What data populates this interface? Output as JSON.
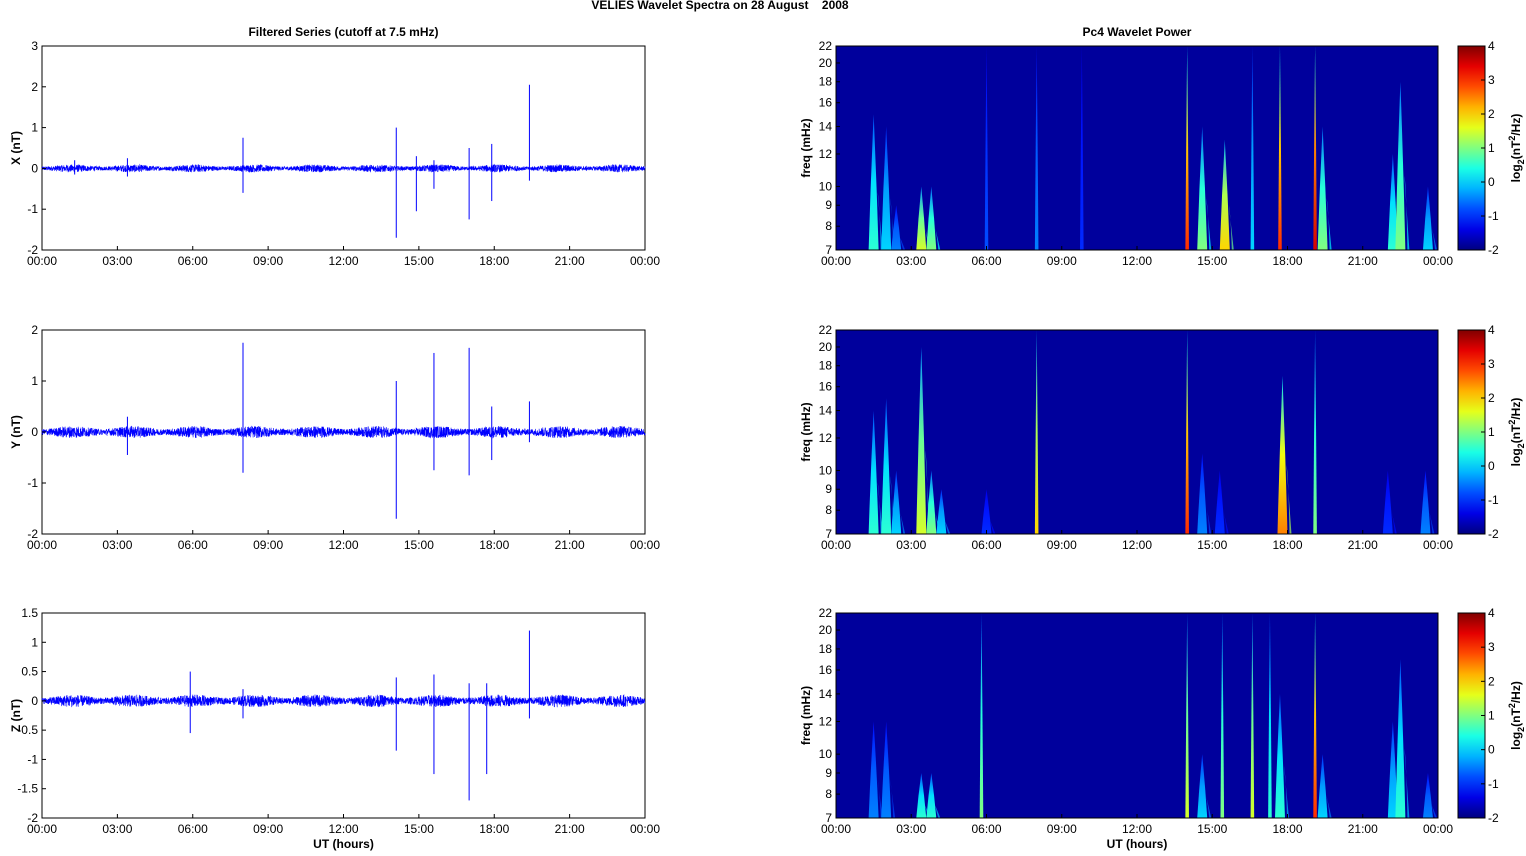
{
  "title": "VELIES Wavelet Spectra on 28 August    2008",
  "chart_data": [
    {
      "type": "line",
      "component": "X",
      "title": "Filtered Series (cutoff at 7.5 mHz)",
      "ylabel": "X (nT)",
      "xlabel": "",
      "ylim": [
        -2,
        3
      ],
      "yticks": [
        -2,
        -1,
        0,
        1,
        2,
        3
      ],
      "noise_amplitude": 0.08,
      "spikes": [
        {
          "t": 1.3,
          "up": 0.2,
          "down": -0.15
        },
        {
          "t": 3.4,
          "up": 0.25,
          "down": -0.2
        },
        {
          "t": 8.0,
          "up": 0.75,
          "down": -0.6
        },
        {
          "t": 14.1,
          "up": 1.0,
          "down": -1.7
        },
        {
          "t": 14.9,
          "up": 0.3,
          "down": -1.05
        },
        {
          "t": 15.6,
          "up": 0.2,
          "down": -0.5
        },
        {
          "t": 17.0,
          "up": 0.5,
          "down": -1.25
        },
        {
          "t": 17.9,
          "up": 0.6,
          "down": -0.8
        },
        {
          "t": 19.4,
          "up": 2.05,
          "down": -0.3
        }
      ]
    },
    {
      "type": "line",
      "component": "Y",
      "title": "",
      "ylabel": "Y (nT)",
      "xlabel": "",
      "ylim": [
        -2,
        2
      ],
      "yticks": [
        -2,
        -1,
        0,
        1,
        2
      ],
      "noise_amplitude": 0.1,
      "spikes": [
        {
          "t": 3.4,
          "up": 0.3,
          "down": -0.45
        },
        {
          "t": 8.0,
          "up": 1.75,
          "down": -0.8
        },
        {
          "t": 14.1,
          "up": 1.0,
          "down": -1.7
        },
        {
          "t": 15.6,
          "up": 1.55,
          "down": -0.75
        },
        {
          "t": 17.0,
          "up": 1.65,
          "down": -0.85
        },
        {
          "t": 17.9,
          "up": 0.5,
          "down": -0.55
        },
        {
          "t": 19.4,
          "up": 0.6,
          "down": -0.2
        }
      ]
    },
    {
      "type": "line",
      "component": "Z",
      "title": "",
      "ylabel": "Z (nT)",
      "xlabel": "UT (hours)",
      "ylim": [
        -2,
        1.5
      ],
      "yticks": [
        -2,
        -1.5,
        -1,
        -0.5,
        0,
        0.5,
        1,
        1.5
      ],
      "noise_amplitude": 0.09,
      "spikes": [
        {
          "t": 5.9,
          "up": 0.5,
          "down": -0.55
        },
        {
          "t": 8.0,
          "up": 0.2,
          "down": -0.3
        },
        {
          "t": 14.1,
          "up": 0.4,
          "down": -0.85
        },
        {
          "t": 15.6,
          "up": 0.45,
          "down": -1.25
        },
        {
          "t": 17.0,
          "up": 0.3,
          "down": -1.7
        },
        {
          "t": 17.7,
          "up": 0.3,
          "down": -1.25
        },
        {
          "t": 19.4,
          "up": 1.2,
          "down": -0.3
        }
      ]
    },
    {
      "type": "heatmap",
      "component": "X",
      "title": "Pc4 Wavelet Power",
      "ylabel": "freq (mHz)",
      "xlabel": "",
      "colorbar_label": "log2(nT2/Hz)",
      "clim": [
        -2,
        4
      ],
      "ylim": [
        7,
        22
      ],
      "bursts": [
        {
          "t": 1.5,
          "p": 0.5,
          "fmax": 15
        },
        {
          "t": 2.0,
          "p": 0,
          "fmax": 14
        },
        {
          "t": 2.4,
          "p": -0.5,
          "fmax": 9
        },
        {
          "t": 3.4,
          "p": 1.5,
          "fmax": 10
        },
        {
          "t": 3.8,
          "p": 1,
          "fmax": 10
        },
        {
          "t": 6.0,
          "p": -0.8,
          "fmax": 22
        },
        {
          "t": 8.0,
          "p": -0.5,
          "fmax": 22
        },
        {
          "t": 9.8,
          "p": -1,
          "fmax": 22
        },
        {
          "t": 14.0,
          "p": 3,
          "fmax": 22
        },
        {
          "t": 14.6,
          "p": 1,
          "fmax": 14
        },
        {
          "t": 15.5,
          "p": 2,
          "fmax": 13
        },
        {
          "t": 16.6,
          "p": 0,
          "fmax": 22
        },
        {
          "t": 17.7,
          "p": 3,
          "fmax": 22
        },
        {
          "t": 19.1,
          "p": 3.5,
          "fmax": 22
        },
        {
          "t": 19.4,
          "p": 1,
          "fmax": 14
        },
        {
          "t": 22.2,
          "p": 0.5,
          "fmax": 12
        },
        {
          "t": 22.5,
          "p": 1,
          "fmax": 18
        },
        {
          "t": 23.6,
          "p": 0,
          "fmax": 10
        }
      ]
    },
    {
      "type": "heatmap",
      "component": "Y",
      "title": "",
      "ylabel": "freq (mHz)",
      "xlabel": "",
      "colorbar_label": "log2(nT2/Hz)",
      "clim": [
        -2,
        4
      ],
      "ylim": [
        7,
        22
      ],
      "bursts": [
        {
          "t": 1.5,
          "p": 0.5,
          "fmax": 14
        },
        {
          "t": 2.0,
          "p": 0.5,
          "fmax": 15
        },
        {
          "t": 2.4,
          "p": 0,
          "fmax": 10
        },
        {
          "t": 3.4,
          "p": 1.5,
          "fmax": 20
        },
        {
          "t": 3.8,
          "p": 1,
          "fmax": 10
        },
        {
          "t": 4.2,
          "p": 0,
          "fmax": 9
        },
        {
          "t": 6.0,
          "p": -1,
          "fmax": 9
        },
        {
          "t": 8.0,
          "p": 2,
          "fmax": 22
        },
        {
          "t": 14.0,
          "p": 3,
          "fmax": 22
        },
        {
          "t": 14.6,
          "p": -0.5,
          "fmax": 11
        },
        {
          "t": 15.3,
          "p": -1,
          "fmax": 10
        },
        {
          "t": 17.8,
          "p": 2.5,
          "fmax": 17
        },
        {
          "t": 19.1,
          "p": 1,
          "fmax": 22
        },
        {
          "t": 22.0,
          "p": -1,
          "fmax": 10
        },
        {
          "t": 23.5,
          "p": -0.5,
          "fmax": 10
        }
      ]
    },
    {
      "type": "heatmap",
      "component": "Z",
      "title": "",
      "ylabel": "freq (mHz)",
      "xlabel": "UT (hours)",
      "colorbar_label": "log2(nT2/Hz)",
      "clim": [
        -2,
        4
      ],
      "ylim": [
        7,
        22
      ],
      "bursts": [
        {
          "t": 1.5,
          "p": -0.5,
          "fmax": 12
        },
        {
          "t": 2.0,
          "p": -0.5,
          "fmax": 12
        },
        {
          "t": 3.4,
          "p": 0.5,
          "fmax": 9
        },
        {
          "t": 3.8,
          "p": 0.5,
          "fmax": 9
        },
        {
          "t": 5.8,
          "p": 1,
          "fmax": 22
        },
        {
          "t": 14.0,
          "p": 1.5,
          "fmax": 22
        },
        {
          "t": 14.6,
          "p": 0,
          "fmax": 10
        },
        {
          "t": 15.4,
          "p": 1,
          "fmax": 22
        },
        {
          "t": 16.6,
          "p": 1.5,
          "fmax": 22
        },
        {
          "t": 17.3,
          "p": 0.5,
          "fmax": 22
        },
        {
          "t": 17.7,
          "p": 0.5,
          "fmax": 14
        },
        {
          "t": 19.1,
          "p": 3,
          "fmax": 22
        },
        {
          "t": 19.4,
          "p": 0,
          "fmax": 10
        },
        {
          "t": 22.2,
          "p": 0,
          "fmax": 12
        },
        {
          "t": 22.5,
          "p": 0.5,
          "fmax": 17
        },
        {
          "t": 23.6,
          "p": -0.5,
          "fmax": 9
        }
      ]
    }
  ],
  "xticks": [
    "00:00",
    "03:00",
    "06:00",
    "09:00",
    "12:00",
    "15:00",
    "18:00",
    "21:00",
    "00:00"
  ],
  "freq_ticks": [
    7,
    8,
    9,
    10,
    12,
    14,
    16,
    18,
    20,
    22
  ],
  "colorbar_ticks": [
    -2,
    -1,
    0,
    1,
    2,
    3,
    4
  ],
  "colors": {
    "series": "#0000ff",
    "background": "#00009c"
  }
}
